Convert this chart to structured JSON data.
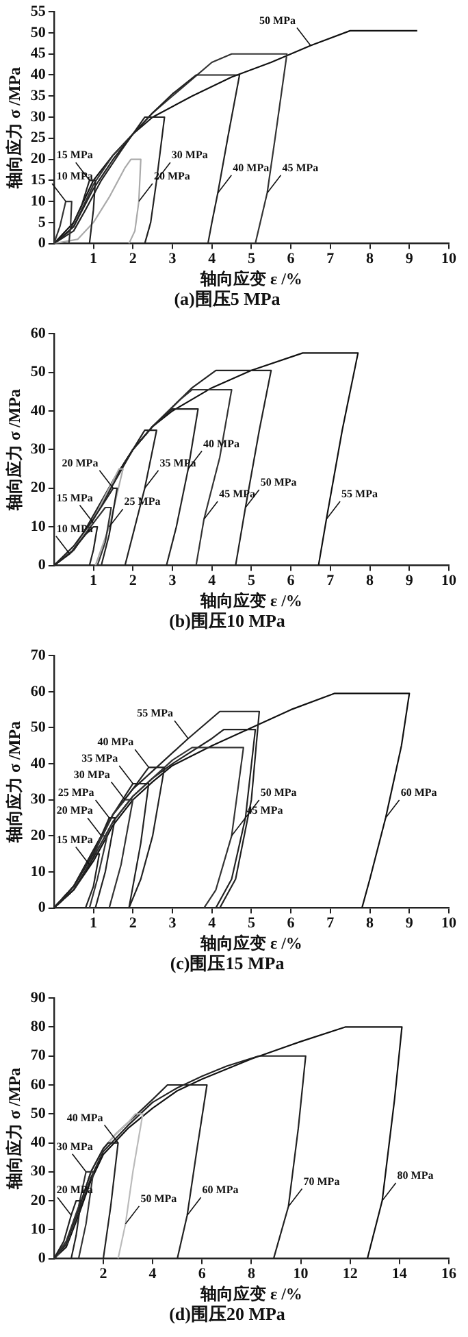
{
  "chart_data": [
    {
      "type": "line",
      "title": "(a)围压5 MPa",
      "xlabel": "轴向应变 ε /%",
      "ylabel": "轴向应力 σ /MPa",
      "xlim": [
        0,
        10
      ],
      "xticks": [
        1,
        2,
        3,
        4,
        5,
        6,
        7,
        8,
        9,
        10
      ],
      "ylim": [
        0,
        55
      ],
      "yticks": [
        0,
        5,
        10,
        15,
        20,
        25,
        30,
        35,
        40,
        45,
        50,
        55
      ],
      "grid": false,
      "legend": false,
      "marker": "none",
      "series": [
        {
          "color": "#333333",
          "x": [
            0,
            0.15,
            0.3,
            0.45,
            0.42,
            0.38
          ],
          "values": [
            0,
            4,
            10,
            10,
            4,
            0
          ]
        },
        {
          "color": "#222222",
          "x": [
            0,
            0.4,
            0.7,
            0.9,
            1.05,
            1.0,
            0.9
          ],
          "values": [
            0,
            3,
            9,
            15,
            15,
            8,
            0
          ]
        },
        {
          "color": "#aaaaaa",
          "x": [
            0,
            0.6,
            1.0,
            1.4,
            1.8,
            1.95,
            2.2,
            2.15,
            2.05,
            1.9
          ],
          "values": [
            0,
            1,
            5,
            11,
            18,
            20,
            20,
            10,
            3,
            0
          ]
        },
        {
          "color": "#222222",
          "x": [
            0,
            0.5,
            0.8,
            1.2,
            1.7,
            2.3,
            2.8,
            2.6,
            2.45,
            2.3
          ],
          "values": [
            0,
            3,
            8,
            15,
            22,
            30,
            30,
            15,
            5,
            0
          ]
        },
        {
          "color": "#222222",
          "x": [
            0,
            0.5,
            1.0,
            1.5,
            2.0,
            2.5,
            3.0,
            3.6,
            4.7,
            4.4,
            4.15,
            4.0,
            3.9
          ],
          "values": [
            0,
            4,
            13,
            20,
            26,
            31,
            35.5,
            40,
            40,
            25,
            12,
            5,
            0
          ]
        },
        {
          "color": "#333333",
          "x": [
            0,
            0.5,
            1,
            1.5,
            2,
            2.5,
            3,
            3.5,
            4,
            4.5,
            5.9,
            5.6,
            5.4,
            5.2,
            5.1
          ],
          "values": [
            0,
            4,
            14,
            21,
            26,
            31,
            35,
            39,
            43,
            45,
            45,
            25,
            12,
            4,
            0
          ]
        },
        {
          "color": "#111111",
          "x": [
            0,
            0.5,
            1,
            1.5,
            2,
            2.5,
            3.5,
            4.5,
            5.5,
            6.5,
            7.5,
            9.2
          ],
          "values": [
            0,
            5,
            15,
            21,
            26,
            30,
            35,
            39.5,
            43,
            47,
            50.5,
            50.5
          ]
        }
      ],
      "annotations": [
        {
          "text": "10 MPa",
          "x": 0.3,
          "y": 10
        },
        {
          "text": "15 MPa",
          "x": 0.9,
          "y": 15
        },
        {
          "text": "20 MPa",
          "x": 2.15,
          "y": 10
        },
        {
          "text": "30 MPa",
          "x": 2.6,
          "y": 15
        },
        {
          "text": "40 MPa",
          "x": 4.15,
          "y": 12
        },
        {
          "text": "45 MPa",
          "x": 5.4,
          "y": 12
        },
        {
          "text": "50 MPa",
          "x": 6.5,
          "y": 47
        }
      ]
    },
    {
      "type": "line",
      "title": "(b)围压10 MPa",
      "xlabel": "轴向应变 ε /%",
      "ylabel": "轴向应力 σ /MPa",
      "xlim": [
        0,
        10
      ],
      "xticks": [
        1,
        2,
        3,
        4,
        5,
        6,
        7,
        8,
        9,
        10
      ],
      "ylim": [
        0,
        60
      ],
      "yticks": [
        0,
        10,
        20,
        30,
        40,
        50,
        60
      ],
      "grid": false,
      "legend": false,
      "marker": "none",
      "series": [
        {
          "color": "#222222",
          "x": [
            0,
            0.4,
            0.8,
            1.0,
            1.1,
            1.0,
            0.9
          ],
          "values": [
            0,
            3,
            8,
            10,
            10,
            4,
            0
          ]
        },
        {
          "color": "#333333",
          "x": [
            0,
            0.5,
            1.0,
            1.3,
            1.45,
            1.3,
            1.1
          ],
          "values": [
            0,
            4,
            11,
            15,
            15,
            6,
            0
          ]
        },
        {
          "color": "#222222",
          "x": [
            0,
            0.5,
            1.0,
            1.5,
            1.6,
            1.4,
            1.2
          ],
          "values": [
            0,
            5,
            12,
            20,
            20,
            8,
            0
          ]
        },
        {
          "color": "#aaaaaa",
          "x": [
            0,
            0.5,
            1,
            1.5,
            1.65,
            1.75,
            1.4,
            1.05
          ],
          "values": [
            0,
            4,
            12,
            22,
            25,
            25,
            10,
            0
          ]
        },
        {
          "color": "#222222",
          "x": [
            0,
            0.5,
            1,
            1.5,
            2,
            2.3,
            2.6,
            2.3,
            2.0,
            1.8
          ],
          "values": [
            0,
            4,
            12,
            21,
            30,
            35,
            35,
            20,
            8,
            0
          ]
        },
        {
          "color": "#222222",
          "x": [
            0,
            0.5,
            1,
            1.5,
            2,
            2.5,
            3,
            3.65,
            3.4,
            3.1,
            2.85
          ],
          "values": [
            0,
            4,
            13,
            22,
            30,
            36,
            40.5,
            40.5,
            25,
            10,
            0
          ]
        },
        {
          "color": "#333333",
          "x": [
            0,
            0.5,
            1,
            1.5,
            2,
            2.5,
            3.2,
            3.5,
            4.5,
            4.2,
            3.8,
            3.6
          ],
          "values": [
            0,
            4,
            12,
            22,
            30,
            36,
            43,
            45.5,
            45.5,
            28,
            12,
            0
          ]
        },
        {
          "color": "#222222",
          "x": [
            0,
            0.5,
            1,
            1.5,
            2,
            2.5,
            3,
            3.5,
            4.1,
            5.5,
            5.2,
            4.85,
            4.6
          ],
          "values": [
            0,
            4,
            12,
            22,
            30,
            36,
            41,
            46,
            50.5,
            50.5,
            35,
            15,
            0
          ]
        },
        {
          "color": "#111111",
          "x": [
            0,
            0.5,
            1,
            1.5,
            2,
            2.5,
            3,
            4,
            5,
            6.3,
            7.7,
            7.3,
            6.9,
            6.7
          ],
          "values": [
            0,
            4,
            12,
            22,
            30,
            36,
            40,
            46,
            50.5,
            55,
            55,
            35,
            12,
            0
          ]
        }
      ],
      "annotations": [
        {
          "text": "10 MPa",
          "x": 0.4,
          "y": 3
        },
        {
          "text": "15 MPa",
          "x": 1.0,
          "y": 11
        },
        {
          "text": "20 MPa",
          "x": 1.5,
          "y": 20
        },
        {
          "text": "25 MPa",
          "x": 1.4,
          "y": 10
        },
        {
          "text": "35 MPa",
          "x": 2.3,
          "y": 20
        },
        {
          "text": "40 MPa",
          "x": 3.4,
          "y": 25
        },
        {
          "text": "45 MPa",
          "x": 3.8,
          "y": 12
        },
        {
          "text": "50 MPa",
          "x": 4.85,
          "y": 15
        },
        {
          "text": "55 MPa",
          "x": 6.9,
          "y": 12
        }
      ]
    },
    {
      "type": "line",
      "title": "(c)围压15 MPa",
      "xlabel": "轴向应变 ε /%",
      "ylabel": "轴向应力 σ /MPa",
      "xlim": [
        0,
        10
      ],
      "xticks": [
        1,
        2,
        3,
        4,
        5,
        6,
        7,
        8,
        9,
        10
      ],
      "ylim": [
        0,
        70
      ],
      "yticks": [
        0,
        10,
        20,
        30,
        40,
        50,
        60,
        70
      ],
      "grid": false,
      "legend": false,
      "marker": "none",
      "series": [
        {
          "color": "#222222",
          "x": [
            0,
            0.5,
            0.9,
            1.05,
            1.15,
            1.0,
            0.8
          ],
          "values": [
            0,
            5,
            12,
            15,
            15,
            6,
            0
          ]
        },
        {
          "color": "#333333",
          "x": [
            0,
            0.5,
            1.0,
            1.2,
            1.35,
            1.1,
            0.9
          ],
          "values": [
            0,
            5,
            14,
            20,
            20,
            8,
            0
          ]
        },
        {
          "color": "#222222",
          "x": [
            0,
            0.5,
            1.0,
            1.4,
            1.55,
            1.3,
            1.05
          ],
          "values": [
            0,
            6,
            15,
            25,
            25,
            10,
            0
          ]
        },
        {
          "color": "#333333",
          "x": [
            0,
            0.5,
            1,
            1.5,
            1.8,
            2.0,
            1.7,
            1.4
          ],
          "values": [
            0,
            6,
            15,
            26,
            30,
            30,
            12,
            0
          ]
        },
        {
          "color": "#222222",
          "x": [
            0,
            0.5,
            1,
            1.5,
            2.0,
            2.4,
            2.2,
            1.9
          ],
          "values": [
            0,
            6,
            16,
            26,
            34.5,
            34.5,
            18,
            0
          ]
        },
        {
          "color": "#222222",
          "x": [
            0,
            0.5,
            1,
            1.5,
            2,
            2.4,
            2.8,
            2.5,
            2.2,
            1.9
          ],
          "values": [
            0,
            6,
            16,
            26,
            33,
            39,
            39,
            20,
            8,
            0
          ]
        },
        {
          "color": "#333333",
          "x": [
            0,
            0.5,
            1,
            1.5,
            2,
            2.5,
            3,
            3.5,
            4.8,
            4.5,
            4.1,
            3.8
          ],
          "values": [
            0,
            5,
            14,
            24,
            31,
            36,
            41,
            44.5,
            44.5,
            20,
            5,
            0
          ]
        },
        {
          "color": "#222222",
          "x": [
            0,
            0.5,
            1,
            1.5,
            2,
            2.5,
            3,
            4,
            4.3,
            5.1,
            4.85,
            4.5,
            4.1
          ],
          "values": [
            0,
            5,
            14,
            24,
            31,
            36,
            40,
            47,
            49.5,
            49.5,
            25,
            8,
            0
          ]
        },
        {
          "color": "#222222",
          "x": [
            0,
            0.5,
            1,
            1.5,
            2,
            2.5,
            3.4,
            4.2,
            5.2,
            5.0,
            4.6,
            4.2
          ],
          "values": [
            0,
            6,
            15,
            26,
            33,
            38,
            47,
            54.5,
            54.5,
            30,
            8,
            0
          ]
        },
        {
          "color": "#111111",
          "x": [
            0,
            0.5,
            1,
            1.5,
            2,
            2.5,
            3,
            4,
            5,
            6,
            7.1,
            9,
            8.8,
            8.4,
            8.0,
            7.8
          ],
          "values": [
            0,
            5,
            13,
            23,
            30,
            35,
            39.5,
            45,
            50,
            55,
            59.5,
            59.5,
            45,
            25,
            8,
            0
          ]
        }
      ],
      "annotations": [
        {
          "text": "15 MPa",
          "x": 0.9,
          "y": 12
        },
        {
          "text": "20 MPa",
          "x": 1.2,
          "y": 20
        },
        {
          "text": "25 MPa",
          "x": 1.4,
          "y": 25
        },
        {
          "text": "30 MPa",
          "x": 1.8,
          "y": 30
        },
        {
          "text": "35 MPa",
          "x": 2.0,
          "y": 34.5
        },
        {
          "text": "40 MPa",
          "x": 2.4,
          "y": 39
        },
        {
          "text": "55 MPa",
          "x": 3.4,
          "y": 47
        },
        {
          "text": "50 MPa",
          "x": 4.85,
          "y": 25
        },
        {
          "text": "45 MPa",
          "x": 4.5,
          "y": 20
        },
        {
          "text": "60 MPa",
          "x": 8.4,
          "y": 25
        }
      ]
    },
    {
      "type": "line",
      "title": "(d)围压20 MPa",
      "xlabel": "轴向应变 ε /%",
      "ylabel": "轴向应力 σ /MPa",
      "xlim": [
        0,
        16
      ],
      "xticks": [
        2,
        4,
        6,
        8,
        10,
        12,
        14,
        16
      ],
      "ylim": [
        0,
        90
      ],
      "yticks": [
        0,
        10,
        20,
        30,
        40,
        50,
        60,
        70,
        80,
        90
      ],
      "grid": false,
      "legend": false,
      "marker": "none",
      "series": [
        {
          "color": "#222222",
          "x": [
            0,
            0.4,
            0.7,
            0.9,
            1.1,
            0.9,
            0.7
          ],
          "values": [
            0,
            6,
            15,
            20,
            20,
            8,
            0
          ]
        },
        {
          "color": "#333333",
          "x": [
            0,
            0.5,
            1,
            1.3,
            1.6,
            1.3,
            1.0
          ],
          "values": [
            0,
            6,
            18,
            30,
            30,
            12,
            0
          ]
        },
        {
          "color": "#222222",
          "x": [
            0,
            0.5,
            1,
            1.5,
            2.0,
            2.2,
            2.6,
            2.3,
            2.0
          ],
          "values": [
            0,
            5,
            17,
            30,
            38,
            40,
            40,
            18,
            0
          ]
        },
        {
          "color": "#bbbbbb",
          "x": [
            0,
            0.5,
            1,
            1.5,
            2,
            2.5,
            3,
            3.3,
            3.6,
            3.2,
            2.9,
            2.6
          ],
          "values": [
            0,
            5,
            17,
            30,
            38,
            43,
            47,
            50,
            50,
            30,
            12,
            0
          ]
        },
        {
          "color": "#222222",
          "x": [
            0,
            0.5,
            1,
            1.5,
            2,
            2.5,
            3,
            4,
            4.6,
            6.2,
            5.8,
            5.4,
            5.0
          ],
          "values": [
            0,
            5,
            17,
            30,
            38,
            43,
            47,
            55,
            60,
            60,
            38,
            15,
            0
          ]
        },
        {
          "color": "#222222",
          "x": [
            0,
            0.5,
            1,
            1.5,
            2,
            3,
            4,
            5,
            6,
            7,
            8.3,
            10.2,
            9.9,
            9.5,
            8.9
          ],
          "values": [
            0,
            5,
            16,
            28,
            37,
            46,
            54,
            59,
            63,
            66.5,
            70,
            70,
            45,
            18,
            0
          ]
        },
        {
          "color": "#111111",
          "x": [
            0,
            0.5,
            1,
            1.5,
            2,
            3,
            4,
            5,
            6,
            8,
            10,
            11.8,
            14.1,
            13.8,
            13.3,
            12.7
          ],
          "values": [
            0,
            4,
            15,
            27,
            36,
            45,
            52,
            58,
            62,
            69,
            75,
            80,
            80,
            55,
            20,
            0
          ]
        }
      ],
      "annotations": [
        {
          "text": "20 MPa",
          "x": 0.7,
          "y": 15
        },
        {
          "text": "30 MPa",
          "x": 1.3,
          "y": 30
        },
        {
          "text": "40 MPa",
          "x": 2.6,
          "y": 40
        },
        {
          "text": "50 MPa",
          "x": 2.9,
          "y": 12
        },
        {
          "text": "60 MPa",
          "x": 5.4,
          "y": 15
        },
        {
          "text": "70 MPa",
          "x": 9.5,
          "y": 18
        },
        {
          "text": "80 MPa",
          "x": 13.3,
          "y": 20
        }
      ]
    }
  ]
}
